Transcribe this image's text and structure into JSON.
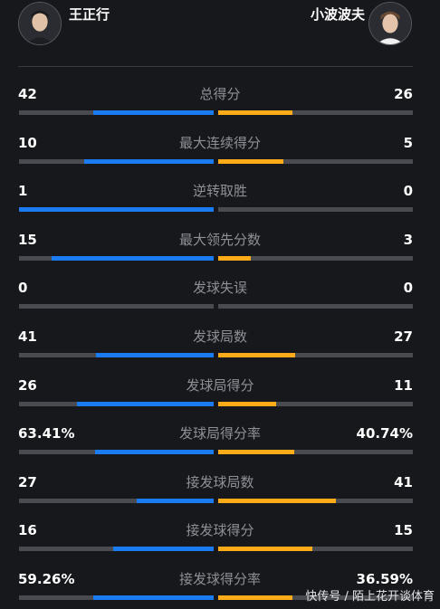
{
  "players": {
    "left": {
      "name": "王正行",
      "avatar_icon": "player-avatar-icon"
    },
    "right": {
      "name": "小波波夫",
      "avatar_icon": "player-avatar-icon"
    }
  },
  "colors": {
    "left_bar": "#1a7cf0",
    "right_bar": "#ffab1a",
    "track": "#4a4b50",
    "background": "#17181c"
  },
  "stats": [
    {
      "label": "总得分",
      "left": "42",
      "right": "26",
      "left_share": 0.618,
      "right_share": 0.382
    },
    {
      "label": "最大连续得分",
      "left": "10",
      "right": "5",
      "left_share": 0.667,
      "right_share": 0.333
    },
    {
      "label": "逆转取胜",
      "left": "1",
      "right": "0",
      "left_share": 1.0,
      "right_share": 0.0
    },
    {
      "label": "最大领先分数",
      "left": "15",
      "right": "3",
      "left_share": 0.833,
      "right_share": 0.167
    },
    {
      "label": "发球失误",
      "left": "0",
      "right": "0",
      "left_share": 0.0,
      "right_share": 0.0
    },
    {
      "label": "发球局数",
      "left": "41",
      "right": "27",
      "left_share": 0.603,
      "right_share": 0.397
    },
    {
      "label": "发球局得分",
      "left": "26",
      "right": "11",
      "left_share": 0.703,
      "right_share": 0.297
    },
    {
      "label": "发球局得分率",
      "left": "63.41%",
      "right": "40.74%",
      "left_share": 0.609,
      "right_share": 0.391
    },
    {
      "label": "接发球局数",
      "left": "27",
      "right": "41",
      "left_share": 0.397,
      "right_share": 0.603
    },
    {
      "label": "接发球得分",
      "left": "16",
      "right": "15",
      "left_share": 0.516,
      "right_share": 0.484
    },
    {
      "label": "接发球得分率",
      "left": "59.26%",
      "right": "36.59%",
      "left_share": 0.618,
      "right_share": 0.382
    }
  ],
  "watermark": "快传号 / 陌上花开谈体育"
}
